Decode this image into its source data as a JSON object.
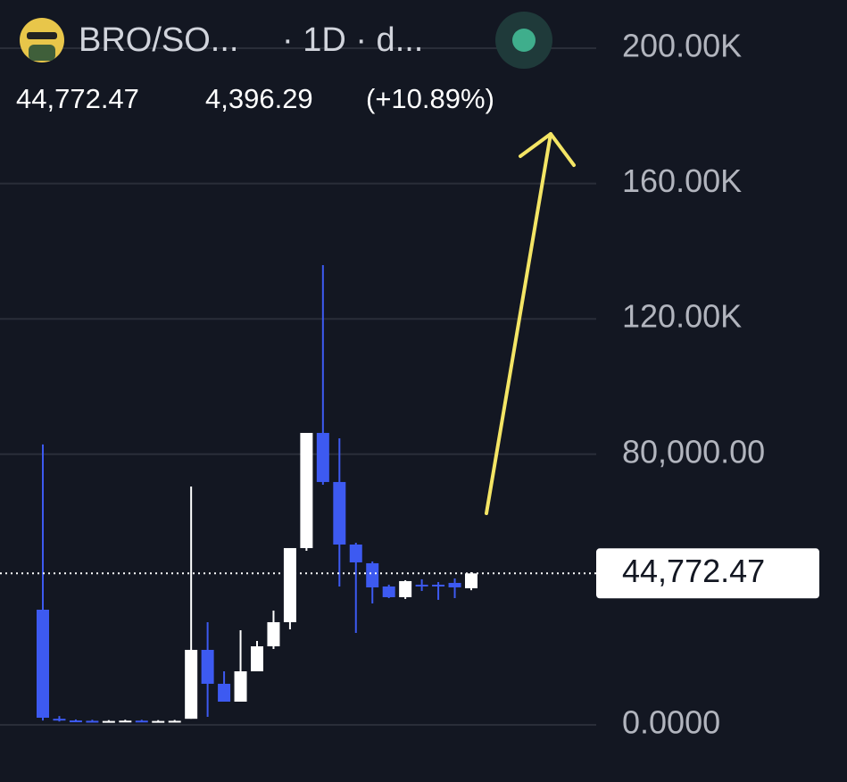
{
  "chart_data": {
    "type": "candlestick",
    "title": "BRO/SO...",
    "subtitle": "· 1D · d...",
    "last_price": {
      "value": 44772.47,
      "label": "44,772.47"
    },
    "change": {
      "value": 4396.29,
      "label": "4,396.29"
    },
    "change_percent": {
      "value": 10.89,
      "label": "(+10.89%)"
    },
    "up_color": "#ffffff",
    "down_color": "#3d5af1",
    "ylim": [
      0,
      200000
    ],
    "yticks": [
      {
        "value": 0,
        "label": "0.0000"
      },
      {
        "value": 80000,
        "label": "80,000.00"
      },
      {
        "value": 120000,
        "label": "120.00K"
      },
      {
        "value": 160000,
        "label": "160.00K"
      },
      {
        "value": 200000,
        "label": "200.00K"
      }
    ],
    "grid": true,
    "categories": [
      null,
      null,
      null,
      null,
      null,
      null,
      null,
      null,
      null,
      null,
      null,
      null,
      null,
      null,
      null,
      null,
      null,
      null,
      null,
      null,
      null,
      null,
      null,
      null,
      null,
      null,
      null
    ],
    "open": [
      34040,
      1800,
      1300,
      1200,
      1100,
      1150,
      1250,
      1100,
      1150,
      1800,
      22170,
      12140,
      6860,
      15830,
      23220,
      30350,
      52250,
      86290,
      71780,
      53300,
      47770,
      40900,
      37740,
      41430,
      41430,
      41960,
      40376.18
    ],
    "high": [
      82870,
      2600,
      1600,
      1500,
      1400,
      1500,
      1500,
      1400,
      1450,
      70460,
      30350,
      15830,
      27970,
      24800,
      33780,
      52250,
      86290,
      135900,
      84710,
      53830,
      48300,
      41430,
      42760,
      43020,
      42220,
      43280,
      45130
    ],
    "low": [
      1300,
      1000,
      900,
      900,
      1000,
      1000,
      900,
      1000,
      1050,
      1800,
      2375,
      6860,
      6860,
      15830,
      22430,
      28240,
      51460,
      70990,
      40900,
      27180,
      35890,
      37470,
      37210,
      39590,
      36950,
      37470,
      39800
    ],
    "close": [
      2110,
      1300,
      1200,
      1100,
      1150,
      1250,
      1100,
      1150,
      1200,
      22170,
      12140,
      6860,
      15830,
      23220,
      30350,
      52250,
      86290,
      71780,
      53300,
      48030,
      40640,
      37740,
      42490,
      41170,
      40900,
      40640,
      44772.47
    ]
  }
}
